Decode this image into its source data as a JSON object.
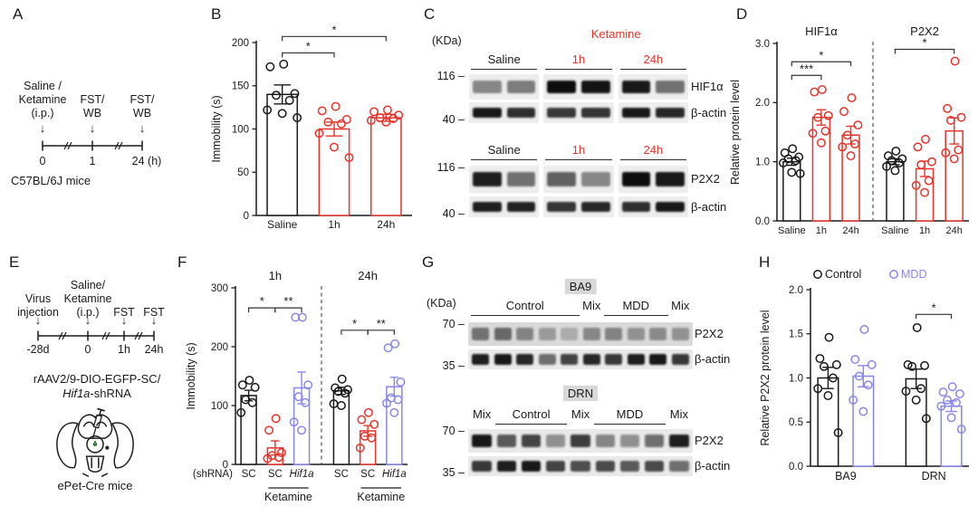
{
  "colors": {
    "black": "#1a1a1a",
    "red": "#e8332a",
    "blue": "#8787ea",
    "bracket": "#333333",
    "green": "#2e9e3a",
    "chip": "#d8d8d8"
  },
  "panelA": {
    "label": "A",
    "events": [
      {
        "name": "Saline /\nKetamine\n(i.p.)"
      },
      {
        "name": "FST/\nWB"
      },
      {
        "name": "FST/\nWB"
      }
    ],
    "ticks": [
      "0",
      "1",
      "24 (h)"
    ],
    "caption": "C57BL/6J mice"
  },
  "panelB": {
    "label": "B"
  },
  "panelC": {
    "label": "C",
    "kda_label": "(KDa)",
    "blocks": [
      {
        "lanes": 6,
        "treatment": {
          "text": "Ketamine",
          "from": 2,
          "to": 5
        },
        "groups": [
          {
            "text": "Saline",
            "from": 0,
            "to": 1,
            "color": "black",
            "underline": true
          },
          {
            "text": "1h",
            "from": 2,
            "to": 3,
            "color": "red",
            "underline": true
          },
          {
            "text": "24h",
            "from": 4,
            "to": 5,
            "color": "red",
            "underline": true
          }
        ],
        "rows": [
          {
            "marker": "116 –",
            "label": "HIF1α",
            "bands": [
              0.45,
              0.5,
              1.0,
              0.97,
              0.95,
              0.55
            ]
          },
          {
            "marker": "40 –",
            "label": "β-actin",
            "bands": [
              0.95,
              0.85,
              0.8,
              0.82,
              0.95,
              0.88
            ]
          }
        ]
      },
      {
        "lanes": 6,
        "groups": [
          {
            "text": "Saline",
            "from": 0,
            "to": 1,
            "color": "black",
            "underline": true
          },
          {
            "text": "1h",
            "from": 2,
            "to": 3,
            "color": "red",
            "underline": true
          },
          {
            "text": "24h",
            "from": 4,
            "to": 5,
            "color": "red",
            "underline": true
          }
        ],
        "rows": [
          {
            "marker": "116 –",
            "label": "P2X2",
            "bands": [
              0.92,
              0.55,
              0.62,
              0.45,
              1.0,
              0.95
            ]
          },
          {
            "marker": "40 –",
            "label": "β-actin",
            "bands": [
              0.92,
              0.9,
              0.82,
              0.88,
              0.85,
              0.95
            ]
          }
        ]
      }
    ]
  },
  "panelD": {
    "label": "D"
  },
  "panelE": {
    "label": "E",
    "events": [
      {
        "name": "Virus\ninjection"
      },
      {
        "name": "Saline/\nKetamine\n(i.p.)"
      },
      {
        "name": "FST"
      },
      {
        "name": "FST"
      }
    ],
    "ticks": [
      "-28d",
      "0",
      "1h",
      "24h"
    ],
    "virus_line1": "rAAV2/9-DIO-EGFP-SC/",
    "virus_gene": "Hif1a",
    "virus_suffix": "-shRNA",
    "caption": "ePet-Cre mice"
  },
  "panelF": {
    "label": "F"
  },
  "panelG": {
    "label": "G",
    "kda_label": "(KDa)",
    "blocks": [
      {
        "title": "BA9",
        "lanes": 10,
        "groups": [
          {
            "text": "Control",
            "from": 0,
            "to": 4,
            "color": "black",
            "underline": true
          },
          {
            "text": "Mix",
            "from": 5,
            "to": 5,
            "color": "black",
            "underline": false
          },
          {
            "text": "MDD",
            "from": 6,
            "to": 8,
            "color": "black",
            "underline": true
          },
          {
            "text": "Mix",
            "from": 9,
            "to": 9,
            "color": "black",
            "underline": false
          }
        ],
        "rows": [
          {
            "marker": "70 –",
            "label": "P2X2",
            "bg": "#d9d9d9",
            "faint": true,
            "bands": [
              0.5,
              0.55,
              0.42,
              0.3,
              0.22,
              0.4,
              0.42,
              0.35,
              0.38,
              0.35
            ]
          },
          {
            "marker": "35 –",
            "label": "β-actin",
            "bands": [
              0.92,
              0.95,
              0.88,
              0.55,
              0.75,
              0.88,
              0.8,
              0.92,
              0.95,
              0.8
            ]
          }
        ]
      },
      {
        "title": "DRN",
        "lanes": 9,
        "groups": [
          {
            "text": "Mix",
            "from": 0,
            "to": 0,
            "color": "black",
            "underline": false
          },
          {
            "text": "Control",
            "from": 1,
            "to": 3,
            "color": "black",
            "underline": true
          },
          {
            "text": "Mix",
            "from": 4,
            "to": 4,
            "color": "black",
            "underline": false
          },
          {
            "text": "MDD",
            "from": 5,
            "to": 7,
            "color": "black",
            "underline": true
          },
          {
            "text": "Mix",
            "from": 8,
            "to": 8,
            "color": "black",
            "underline": false
          }
        ],
        "rows": [
          {
            "marker": "70 –",
            "label": "P2X2",
            "bands": [
              0.95,
              0.65,
              0.75,
              0.4,
              0.78,
              0.45,
              0.4,
              0.55,
              0.92
            ]
          },
          {
            "marker": "35 –",
            "label": "β-actin",
            "bands": [
              0.8,
              0.92,
              0.95,
              0.75,
              0.7,
              0.72,
              0.65,
              0.72,
              0.55
            ]
          }
        ]
      }
    ]
  },
  "panelH": {
    "label": "H"
  },
  "chart_data": [
    {
      "id": "B",
      "type": "bar",
      "ylabel": "Immobility (s)",
      "ylim": [
        0,
        200
      ],
      "yticks": [
        "0",
        "50",
        "100",
        "150",
        "200"
      ],
      "bars": [
        {
          "label": "Saline",
          "color": "black",
          "mean": 140,
          "err": 11,
          "points": [
            175,
            172,
            141,
            139,
            133,
            122,
            118,
            113
          ]
        },
        {
          "label": "1h",
          "color": "red",
          "mean": 100,
          "err": 8,
          "points": [
            126,
            121,
            111,
            108,
            106,
            95,
            79,
            67
          ]
        },
        {
          "label": "24h",
          "color": "red",
          "mean": 113,
          "err": 4,
          "points": [
            122,
            120,
            116,
            113,
            112,
            110,
            108
          ]
        }
      ],
      "brackets": [
        {
          "from": 0,
          "to": 1,
          "y": 188,
          "label": "*"
        },
        {
          "from": 0,
          "to": 2,
          "y": 207,
          "label": "*"
        }
      ]
    },
    {
      "id": "D",
      "type": "bar",
      "ylabel": "Relative protein level",
      "ylim": [
        0,
        3
      ],
      "yticks": [
        "0.0",
        "1.0",
        "2.0",
        "3.0"
      ],
      "titles": [
        {
          "text": "HIF1α",
          "from": 0,
          "to": 2
        },
        {
          "text": "P2X2",
          "from": 3,
          "to": 5
        }
      ],
      "gap_after": 2,
      "separator": true,
      "bars": [
        {
          "label": "Saline",
          "color": "black",
          "mean": 1.0,
          "err": 0.06,
          "points": [
            1.22,
            1.15,
            1.08,
            1.05,
            1.02,
            0.98,
            0.82,
            0.8
          ]
        },
        {
          "label": "1h",
          "color": "red",
          "mean": 1.75,
          "err": 0.13,
          "points": [
            2.22,
            2.18,
            1.78,
            1.75,
            1.52,
            1.48,
            1.32
          ]
        },
        {
          "label": "24h",
          "color": "red",
          "mean": 1.45,
          "err": 0.15,
          "points": [
            2.08,
            1.85,
            1.62,
            1.45,
            1.3,
            1.25,
            1.1
          ]
        },
        {
          "label": "Saline",
          "color": "black",
          "mean": 1.0,
          "err": 0.05,
          "points": [
            1.18,
            1.1,
            1.05,
            1.02,
            0.98,
            0.92,
            0.85
          ]
        },
        {
          "label": "1h",
          "color": "red",
          "mean": 0.88,
          "err": 0.13,
          "points": [
            1.38,
            1.25,
            1.0,
            0.95,
            0.68,
            0.6,
            0.48
          ]
        },
        {
          "label": "24h",
          "color": "red",
          "mean": 1.52,
          "err": 0.22,
          "points": [
            2.7,
            1.9,
            1.75,
            1.7,
            1.2,
            1.15,
            1.05
          ]
        }
      ],
      "brackets": [
        {
          "from": 0,
          "to": 1,
          "y": 2.46,
          "label": "***"
        },
        {
          "from": 0,
          "to": 2,
          "y": 2.69,
          "label": "*"
        },
        {
          "from": 3,
          "to": 5,
          "y": 2.9,
          "label": "*"
        }
      ]
    },
    {
      "id": "F",
      "type": "bar",
      "ylabel": "Immobility (s)",
      "ylim": [
        0,
        300
      ],
      "yticks": [
        "0",
        "100",
        "200",
        "300"
      ],
      "titles": [
        {
          "text": "1h",
          "from": 0,
          "to": 2
        },
        {
          "text": "24h",
          "from": 3,
          "to": 5
        }
      ],
      "gap_after": 2,
      "separator": true,
      "axis_prefix": "(shRNA)",
      "under_labels": [
        {
          "text": "Ketamine",
          "from": 1,
          "to": 2
        },
        {
          "text": "Ketamine",
          "from": 4,
          "to": 5
        }
      ],
      "bars": [
        {
          "label": "SC",
          "color": "black",
          "mean": 117,
          "err": 9,
          "points": [
            143,
            135,
            131,
            110,
            105,
            88
          ]
        },
        {
          "label": "SC",
          "color": "red",
          "mean": 28,
          "err": 12,
          "points": [
            78,
            58,
            20,
            15,
            12,
            10
          ]
        },
        {
          "label": "Hif1a",
          "italic": true,
          "color": "blue",
          "mean": 130,
          "err": 27,
          "points": [
            250,
            250,
            135,
            115,
            105,
            72,
            58
          ]
        },
        {
          "label": "SC",
          "color": "black",
          "mean": 125,
          "err": 6,
          "points": [
            145,
            130,
            127,
            124,
            121,
            103,
            100
          ]
        },
        {
          "label": "SC",
          "color": "red",
          "mean": 57,
          "err": 9,
          "points": [
            88,
            76,
            68,
            48,
            45,
            28
          ]
        },
        {
          "label": "Hif1a",
          "italic": true,
          "color": "blue",
          "mean": 132,
          "err": 16,
          "points": [
            205,
            198,
            140,
            113,
            110,
            104,
            88
          ]
        }
      ],
      "brackets": [
        {
          "from": 0,
          "to": 1,
          "y": 266,
          "label": "*"
        },
        {
          "from": 1,
          "to": 2,
          "y": 266,
          "label": "**"
        },
        {
          "from": 3,
          "to": 4,
          "y": 228,
          "label": "*"
        },
        {
          "from": 4,
          "to": 5,
          "y": 228,
          "label": "**"
        }
      ]
    },
    {
      "id": "H",
      "type": "bar",
      "ylabel": "Relative P2X2 protein level",
      "ylim": [
        0,
        2
      ],
      "yticks": [
        "0.0",
        "0.5",
        "1.0",
        "1.5",
        "2.0"
      ],
      "gap_after": 1,
      "separator": false,
      "legend": [
        {
          "label": "Control",
          "color": "black"
        },
        {
          "label": "MDD",
          "color": "blue"
        }
      ],
      "xgroup_labels": [
        {
          "text": "BA9",
          "from": 0,
          "to": 1
        },
        {
          "text": "DRN",
          "from": 2,
          "to": 3
        }
      ],
      "bars": [
        {
          "label": "",
          "color": "black",
          "mean": 1.0,
          "err": 0.12,
          "points": [
            1.46,
            1.22,
            1.15,
            1.13,
            1.0,
            0.88,
            0.8,
            0.38
          ]
        },
        {
          "label": "",
          "color": "blue",
          "mean": 1.02,
          "err": 0.12,
          "points": [
            1.55,
            1.21,
            1.15,
            1.02,
            0.92,
            0.75,
            0.62
          ]
        },
        {
          "label": "",
          "color": "black",
          "mean": 0.99,
          "err": 0.11,
          "points": [
            1.57,
            1.15,
            1.14,
            1.13,
            0.88,
            0.85,
            0.75,
            0.54
          ]
        },
        {
          "label": "",
          "color": "blue",
          "mean": 0.68,
          "err": 0.06,
          "points": [
            0.9,
            0.84,
            0.82,
            0.75,
            0.72,
            0.68,
            0.55,
            0.42
          ]
        }
      ],
      "brackets": [
        {
          "from": 2,
          "to": 3,
          "y": 1.72,
          "label": "*"
        }
      ]
    }
  ]
}
